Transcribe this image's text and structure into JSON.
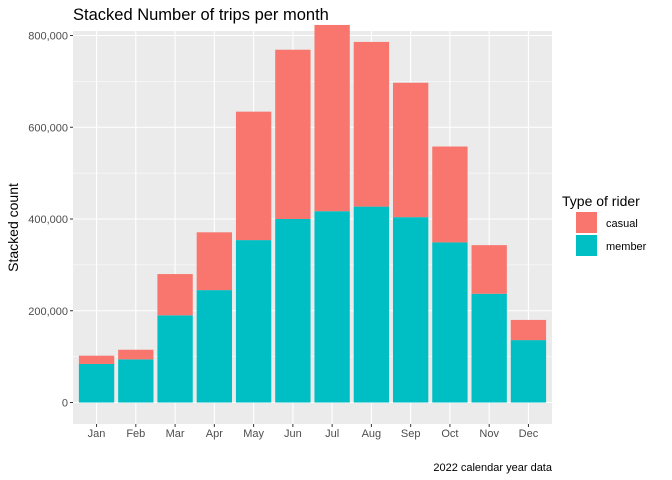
{
  "chart_data": {
    "type": "bar",
    "stacked": true,
    "title": "Stacked Number of trips per month",
    "xlabel": "",
    "ylabel": "Stacked count",
    "caption": "2022 calendar year data",
    "categories": [
      "Jan",
      "Feb",
      "Mar",
      "Apr",
      "May",
      "Jun",
      "Jul",
      "Aug",
      "Sep",
      "Oct",
      "Nov",
      "Dec"
    ],
    "series": [
      {
        "name": "member",
        "color": "#00BFC4",
        "values": [
          84000,
          94000,
          190000,
          245000,
          354000,
          400000,
          417000,
          427000,
          404000,
          349000,
          237000,
          136000
        ]
      },
      {
        "name": "casual",
        "color": "#F8766D",
        "values": [
          18000,
          21000,
          90000,
          126000,
          280000,
          369000,
          406000,
          359000,
          293000,
          209000,
          106000,
          44000
        ]
      }
    ],
    "ylim": [
      0,
      800000
    ],
    "yticks": [
      0,
      200000,
      400000,
      600000,
      800000
    ],
    "ytick_labels": [
      "0",
      "200,000",
      "400,000",
      "600,000",
      "800,000"
    ],
    "legend": {
      "title": "Type of rider",
      "position": "right",
      "entries": [
        {
          "label": "casual",
          "color": "#F8766D"
        },
        {
          "label": "member",
          "color": "#00BFC4"
        }
      ]
    },
    "grid": true,
    "panel_background": "#EBEBEB"
  }
}
